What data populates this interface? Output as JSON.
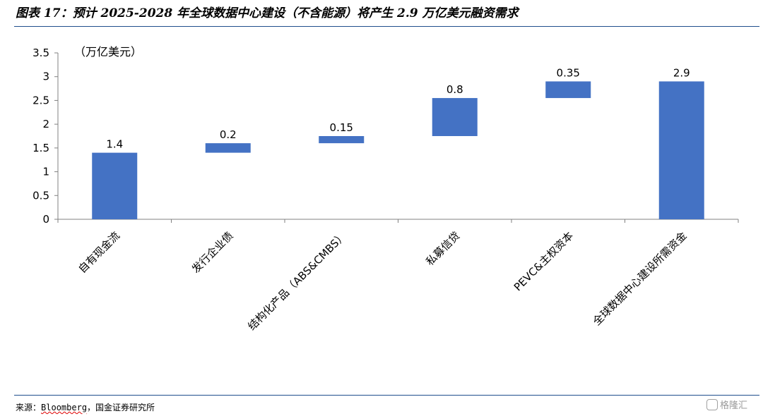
{
  "header": {
    "title": "图表 17：预计 2025-2028 年全球数据中心建设（不含能源）将产生 2.9 万亿美元融资需求"
  },
  "footer": {
    "source_prefix": "来源：",
    "source_name": "Bloomberg",
    "source_suffix": "，国金证券研究所",
    "watermark": "格隆汇"
  },
  "chart_data": {
    "type": "bar",
    "subtype": "waterfall",
    "unit_label": "（万亿美元）",
    "categories": [
      "自有现金流",
      "发行企业债",
      "结构化产品（ABS&CMBS）",
      "私募信贷",
      "PEVC&主权资本",
      "全球数据中心建设所需资金"
    ],
    "values": [
      1.4,
      0.2,
      0.15,
      0.8,
      0.35,
      2.9
    ],
    "value_labels": [
      "1.4",
      "0.2",
      "0.15",
      "0.8",
      "0.35",
      "2.9"
    ],
    "bases": [
      0,
      1.4,
      1.6,
      1.75,
      2.55,
      0
    ],
    "yticks": [
      "0",
      "0.5",
      "1",
      "1.5",
      "2",
      "2.5",
      "3",
      "3.5"
    ],
    "ylim": [
      0,
      3.5
    ],
    "bar_color": "#4472c4",
    "grid": false,
    "legend": "none"
  }
}
